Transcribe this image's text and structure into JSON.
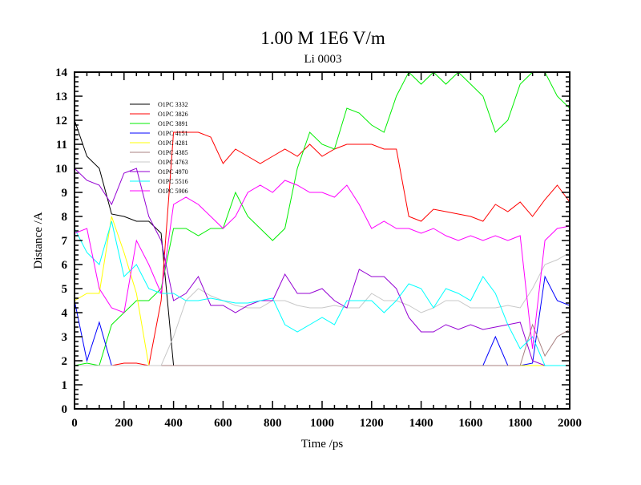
{
  "chart_data": {
    "type": "line",
    "title": "1.00 M 1E6 V/m",
    "subtitle": "Li 0003",
    "xlabel": "Time /ps",
    "ylabel": "Distance /A",
    "xlim": [
      0,
      2000
    ],
    "ylim": [
      0,
      14
    ],
    "xticks": [
      0,
      200,
      400,
      600,
      800,
      1000,
      1200,
      1400,
      1600,
      1800,
      2000
    ],
    "yticks": [
      0,
      1,
      2,
      3,
      4,
      5,
      6,
      7,
      8,
      9,
      10,
      11,
      12,
      13,
      14
    ],
    "grid": false,
    "legend_position": "top-left",
    "x": [
      0,
      50,
      100,
      150,
      200,
      250,
      300,
      350,
      400,
      450,
      500,
      550,
      600,
      650,
      700,
      750,
      800,
      850,
      900,
      950,
      1000,
      1050,
      1100,
      1150,
      1200,
      1250,
      1300,
      1350,
      1400,
      1450,
      1500,
      1550,
      1600,
      1650,
      1700,
      1750,
      1800,
      1850,
      1900,
      1950,
      2000
    ],
    "series": [
      {
        "name": "O1PC 3332",
        "color": "#000000",
        "values": [
          12,
          10.5,
          10,
          8.1,
          8,
          7.8,
          7.8,
          7.3,
          1.8,
          1.8,
          1.8,
          1.8,
          1.8,
          1.8,
          1.8,
          1.8,
          1.8,
          1.8,
          1.8,
          1.8,
          1.8,
          1.8,
          1.8,
          1.8,
          1.8,
          1.8,
          1.8,
          1.8,
          1.8,
          1.8,
          1.8,
          1.8,
          1.8,
          1.8,
          1.8,
          1.8,
          1.8,
          1.8,
          1.8,
          1.8,
          1.8
        ]
      },
      {
        "name": "O1PC 3826",
        "color": "#ff0000",
        "values": [
          1.8,
          1.8,
          1.8,
          1.8,
          1.9,
          1.9,
          1.8,
          4.5,
          11.5,
          11.5,
          11.5,
          11.3,
          10.2,
          10.8,
          10.5,
          10.2,
          10.5,
          10.8,
          10.5,
          11,
          10.5,
          10.8,
          11,
          11,
          11,
          10.8,
          10.8,
          8,
          7.8,
          8.3,
          8.2,
          8.1,
          8,
          7.8,
          8.5,
          8.2,
          8.6,
          8,
          8.7,
          9.3,
          8.6
        ]
      },
      {
        "name": "O1PC 3891",
        "color": "#00ee00",
        "values": [
          1.8,
          1.9,
          1.8,
          3.5,
          4,
          4.5,
          4.5,
          5,
          7.5,
          7.5,
          7.2,
          7.5,
          7.5,
          9,
          8,
          7.5,
          7,
          7.5,
          10,
          11.5,
          11,
          10.8,
          12.5,
          12.3,
          11.8,
          11.5,
          13,
          14,
          13.5,
          14,
          13.5,
          14,
          13.5,
          13,
          11.5,
          12,
          13.5,
          14,
          14,
          13,
          12.5
        ]
      },
      {
        "name": "O1PC 4151",
        "color": "#0000ff",
        "values": [
          4.5,
          2,
          3.6,
          1.8,
          1.8,
          1.8,
          1.8,
          1.8,
          1.8,
          1.8,
          1.8,
          1.8,
          1.8,
          1.8,
          1.8,
          1.8,
          1.8,
          1.8,
          1.8,
          1.8,
          1.8,
          1.8,
          1.8,
          1.8,
          1.8,
          1.8,
          1.8,
          1.8,
          1.8,
          1.8,
          1.8,
          1.8,
          1.8,
          1.8,
          3,
          1.8,
          1.8,
          1.9,
          5.5,
          4.5,
          4.3
        ]
      },
      {
        "name": "O1PC 4281",
        "color": "#ffff00",
        "values": [
          4.5,
          4.8,
          4.8,
          8,
          6.5,
          4.8,
          1.8,
          1.8,
          1.8,
          1.8,
          1.8,
          1.8,
          1.8,
          1.8,
          1.8,
          1.8,
          1.8,
          1.8,
          1.8,
          1.8,
          1.8,
          1.8,
          1.8,
          1.8,
          1.8,
          1.8,
          1.8,
          1.8,
          1.8,
          1.8,
          1.8,
          1.8,
          1.8,
          1.8,
          1.8,
          1.8,
          1.8,
          1.8,
          1.8,
          1.8,
          1.8
        ]
      },
      {
        "name": "O1PC 4385",
        "color": "#a88080",
        "values": [
          1.8,
          1.8,
          1.8,
          1.8,
          1.8,
          1.8,
          1.8,
          1.8,
          1.8,
          1.8,
          1.8,
          1.8,
          1.8,
          1.8,
          1.8,
          1.8,
          1.8,
          1.8,
          1.8,
          1.8,
          1.8,
          1.8,
          1.8,
          1.8,
          1.8,
          1.8,
          1.8,
          1.8,
          1.8,
          1.8,
          1.8,
          1.8,
          1.8,
          1.8,
          1.8,
          1.8,
          1.8,
          3.5,
          2.2,
          3,
          3.3
        ]
      },
      {
        "name": "O1PC 4763",
        "color": "#c8c8c8",
        "values": [
          1.8,
          1.8,
          1.8,
          1.8,
          1.8,
          1.8,
          1.8,
          1.8,
          3,
          4.5,
          5,
          4.7,
          4.5,
          4.3,
          4.2,
          4.2,
          4.5,
          4.5,
          4.3,
          4.2,
          4.2,
          4.3,
          4.2,
          4.2,
          4.8,
          4.5,
          4.5,
          4.3,
          4,
          4.2,
          4.5,
          4.5,
          4.2,
          4.2,
          4.2,
          4.3,
          4.2,
          5,
          6,
          6.2,
          6.5
        ]
      },
      {
        "name": "O1PC 4970",
        "color": "#9400d3",
        "values": [
          10,
          9.5,
          9.3,
          8.5,
          9.8,
          10,
          8,
          7,
          4.5,
          4.8,
          5.5,
          4.3,
          4.3,
          4,
          4.3,
          4.5,
          4.5,
          5.6,
          4.8,
          4.8,
          5,
          4.5,
          4.2,
          5.8,
          5.5,
          5.5,
          5,
          3.8,
          3.2,
          3.2,
          3.5,
          3.3,
          3.5,
          3.3,
          3.4,
          3.5,
          3.6,
          2,
          1.8,
          1.8,
          1.8
        ]
      },
      {
        "name": "O1PC 5516",
        "color": "#00ffff",
        "values": [
          7.5,
          6.5,
          6,
          7.8,
          5.5,
          6,
          5,
          4.8,
          4.8,
          4.5,
          4.5,
          4.6,
          4.5,
          4.4,
          4.4,
          4.5,
          4.6,
          3.5,
          3.2,
          3.5,
          3.8,
          3.5,
          4.5,
          4.5,
          4.5,
          4,
          4.5,
          5.2,
          5,
          4.2,
          5,
          4.8,
          4.5,
          5.5,
          4.8,
          3.5,
          2.5,
          3,
          1.8,
          1.8,
          1.8
        ]
      },
      {
        "name": "O1PC 5906",
        "color": "#ff00ff",
        "values": [
          7.3,
          7.5,
          5,
          4.2,
          4,
          7,
          6,
          4.8,
          8.5,
          8.8,
          8.5,
          8,
          7.5,
          8,
          9,
          9.3,
          9,
          9.5,
          9.3,
          9,
          9,
          8.8,
          9.3,
          8.5,
          7.5,
          7.8,
          7.5,
          7.5,
          7.3,
          7.5,
          7.2,
          7,
          7.2,
          7,
          7.2,
          7,
          7.2,
          2.5,
          7,
          7.5,
          7.6
        ]
      }
    ]
  }
}
